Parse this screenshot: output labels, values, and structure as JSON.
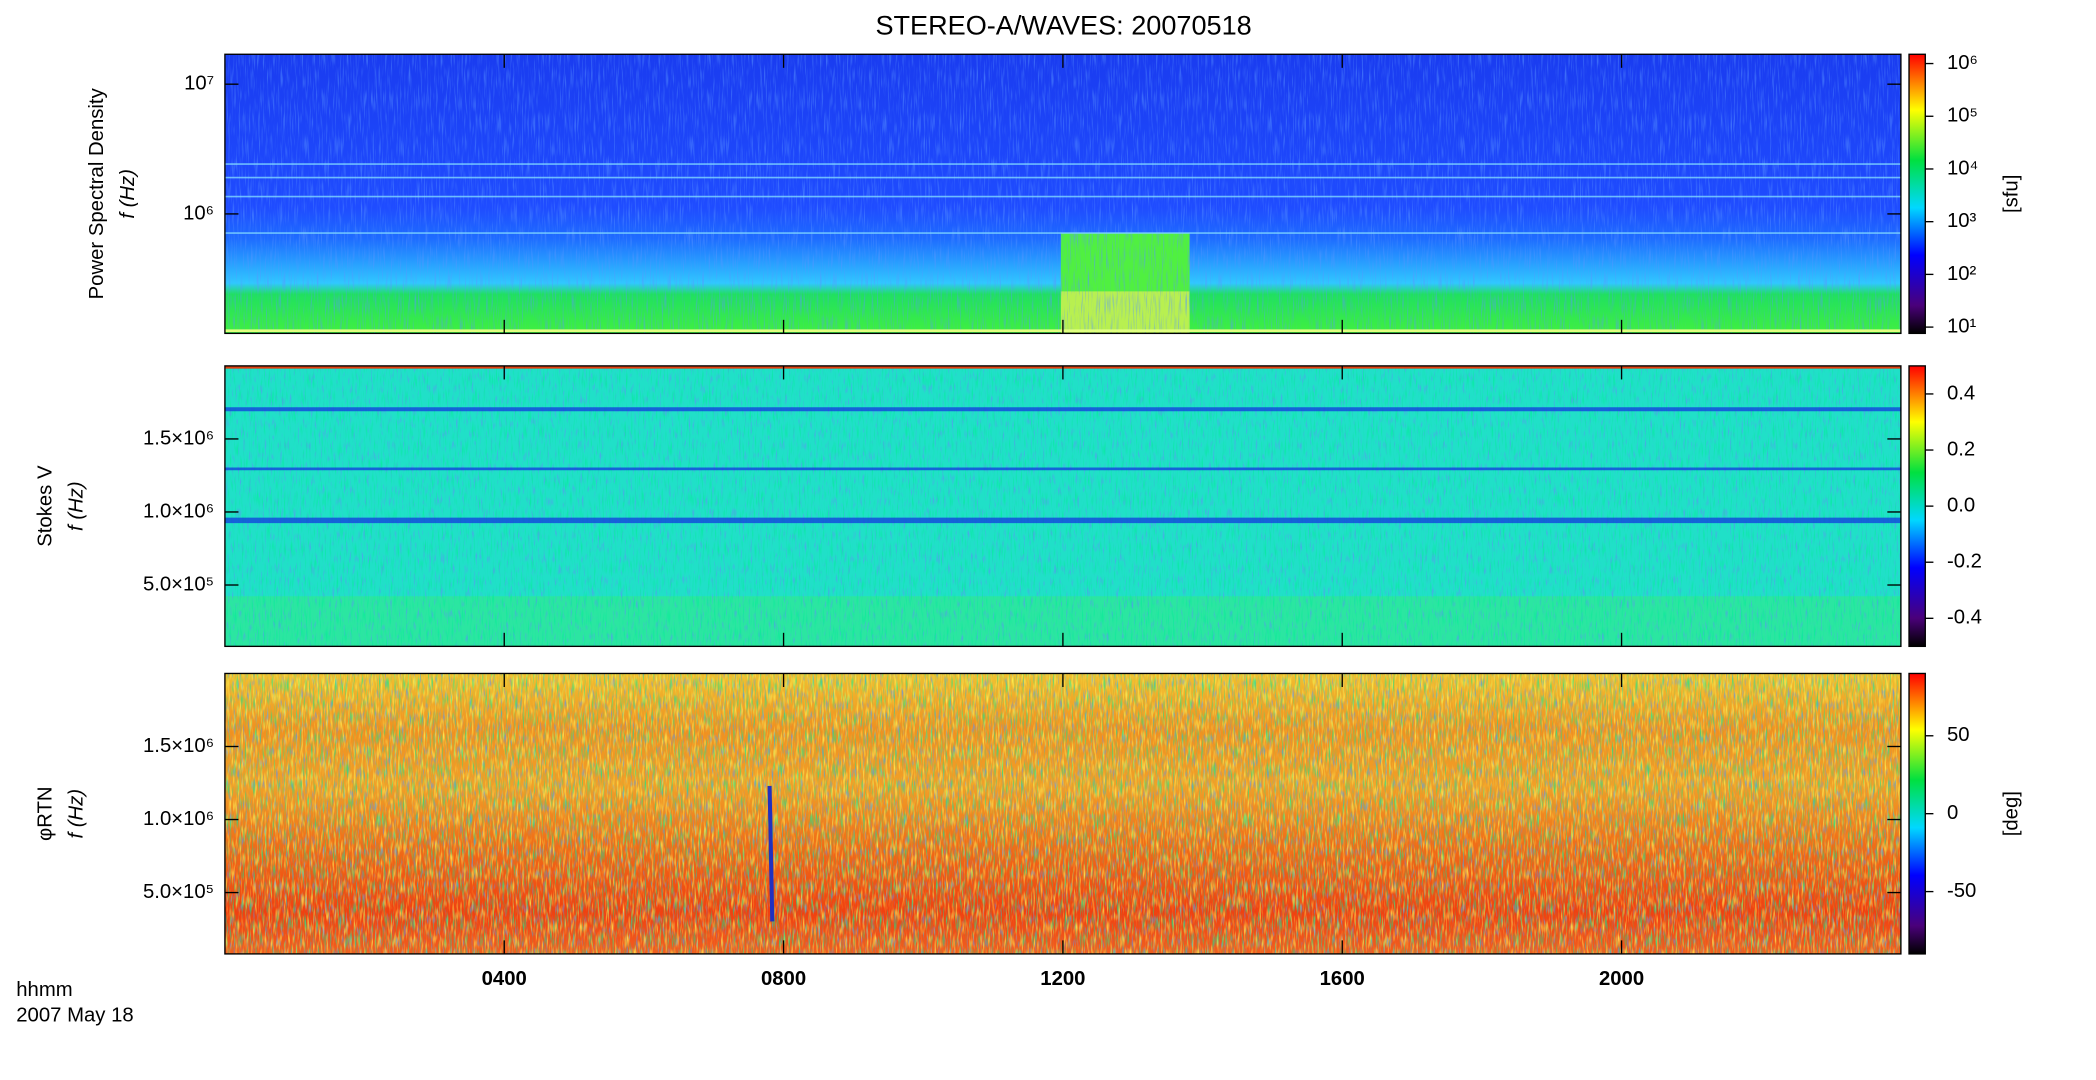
{
  "title": "STEREO-A/WAVES: 20070518",
  "xlabel": "hhmm",
  "date_label": "2007 May 18",
  "chart_data": [
    {
      "type": "spectrogram",
      "ylabel": [
        "Power Spectral Density",
        "f (Hz)"
      ],
      "ylog": true,
      "xlim": [
        0,
        24
      ],
      "ylim": [
        120000,
        17000000
      ],
      "yticks": [
        {
          "value": 1000000,
          "label": "10⁶"
        },
        {
          "value": 10000000,
          "label": "10⁷"
        }
      ],
      "colorbar": {
        "log": true,
        "lim": [
          7.6,
          1500000
        ],
        "label": "[sfu]",
        "ticks": [
          {
            "value": 10,
            "label": "10¹"
          },
          {
            "value": 100,
            "label": "10²"
          },
          {
            "value": 1000,
            "label": "10³"
          },
          {
            "value": 10000,
            "label": "10⁴"
          },
          {
            "value": 100000,
            "label": "10⁵"
          },
          {
            "value": 1000000,
            "label": "10⁶"
          }
        ]
      }
    },
    {
      "type": "spectrogram",
      "ylabel": [
        "Stokes V",
        "f (Hz)"
      ],
      "ylog": false,
      "xlim": [
        0,
        24
      ],
      "ylim": [
        80000,
        2000000
      ],
      "yticks": [
        {
          "value": 500000,
          "label": "5.0×10⁵"
        },
        {
          "value": 1000000,
          "label": "1.0×10⁶"
        },
        {
          "value": 1500000,
          "label": "1.5×10⁶"
        }
      ],
      "colorbar": {
        "log": false,
        "lim": [
          -0.5,
          0.5
        ],
        "ticks": [
          -0.4,
          -0.2,
          {
            "value": 0,
            "label": "0.0"
          },
          0.2,
          0.4
        ]
      }
    },
    {
      "type": "spectrogram",
      "ylabel": [
        "φRTN",
        "f (Hz)"
      ],
      "ylog": false,
      "xlim": [
        0,
        24
      ],
      "ylim": [
        80000,
        2000000
      ],
      "yticks": [
        {
          "value": 500000,
          "label": "5.0×10⁵"
        },
        {
          "value": 1000000,
          "label": "1.0×10⁶"
        },
        {
          "value": 1500000,
          "label": "1.5×10⁶"
        }
      ],
      "xticks": [
        {
          "value": 4,
          "label": "0400"
        },
        {
          "value": 8,
          "label": "0800"
        },
        {
          "value": 12,
          "label": "1200"
        },
        {
          "value": 16,
          "label": "1600"
        },
        {
          "value": 20,
          "label": "2000"
        }
      ],
      "colorbar": {
        "log": false,
        "lim": [
          -90,
          90
        ],
        "label": "[deg]",
        "ticks": [
          -50,
          0,
          50
        ]
      }
    }
  ]
}
